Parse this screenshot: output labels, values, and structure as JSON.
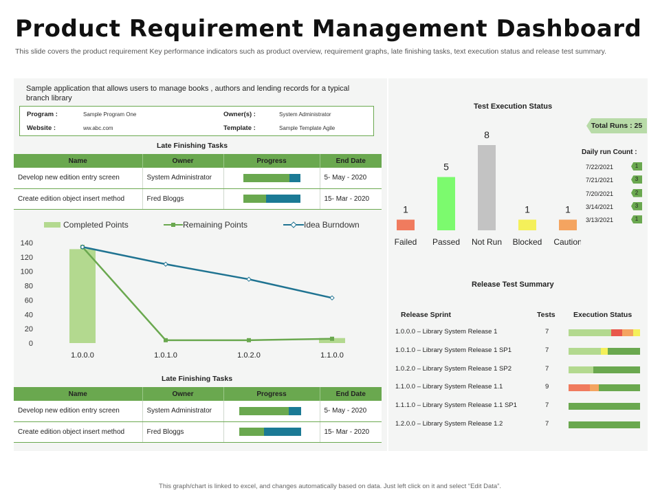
{
  "header": {
    "title": "Product Requirement Management Dashboard",
    "subtitle": "This slide covers the product requirement  Key performance indicators such as product overview, requirement  graphs, late finishing tasks, text execution status and release  test summary."
  },
  "overview": {
    "description": "Sample application that allows users to manage books , authors and lending records for a typical branch library",
    "program_label": "Program :",
    "program_value": "Sample Program One",
    "owner_label": "Owner(s) :",
    "owner_value": "System Administrator",
    "website_label": "Website :",
    "website_value": "ww.abc.com",
    "template_label": "Template :",
    "template_value": "Sample Template Agile"
  },
  "tasks_top": {
    "title": "Late Finishing Tasks",
    "headers": [
      "Name",
      "Owner",
      "Progress",
      "End Date"
    ],
    "rows": [
      {
        "name": "Develop new edition entry screen",
        "owner": "System Administrator",
        "progress": [
          0.8,
          0.2
        ],
        "end": "5- May - 2020"
      },
      {
        "name": "Create edition object insert method",
        "owner": "Fred Bloggs",
        "progress": [
          0.4,
          0.6
        ],
        "end": "15- Mar - 2020"
      }
    ]
  },
  "tasks_bottom": {
    "title": "Late Finishing Tasks",
    "headers": [
      "Name",
      "Owner",
      "Progress",
      "End Date"
    ],
    "rows": [
      {
        "name": "Develop new edition entry screen",
        "owner": "System Administrator",
        "progress": [
          0.8,
          0.2
        ],
        "end": "5- May - 2020"
      },
      {
        "name": "Create edition object insert method",
        "owner": "Fred Bloggs",
        "progress": [
          0.4,
          0.6
        ],
        "end": "15- Mar - 2020"
      }
    ]
  },
  "colors": {
    "green": "#6aa84f",
    "light_green": "#b3d98f",
    "teal": "#1b7a95",
    "blue_line": "#1f7391"
  },
  "chart_data": [
    {
      "type": "bar",
      "name_key": "burndown",
      "categories": [
        "1.0.0.0",
        "1.0.1.0",
        "1.0.2.0",
        "1.1.0.0"
      ],
      "series": [
        {
          "name": "Completed Points",
          "kind": "bar",
          "values": [
            131,
            0,
            0,
            7
          ]
        },
        {
          "name": "Remaining Points",
          "kind": "line",
          "values": [
            134,
            4,
            4,
            6
          ]
        },
        {
          "name": "Idea Burndown",
          "kind": "line",
          "values": [
            134,
            110,
            89,
            63
          ]
        }
      ],
      "yticks": [
        0,
        20,
        40,
        60,
        80,
        100,
        120,
        140
      ],
      "ylim": [
        0,
        140
      ],
      "legend": "top"
    },
    {
      "type": "bar",
      "name_key": "test_execution",
      "title": "Test Execution Status",
      "categories": [
        "Failed",
        "Passed",
        "Not Run",
        "Blocked",
        "Caution"
      ],
      "values": [
        1,
        5,
        8,
        1,
        1
      ],
      "colors": [
        "#f07b5e",
        "#7cfa6e",
        "#c3c3c3",
        "#f4f05a",
        "#f4a460"
      ]
    }
  ],
  "runs": {
    "total_label": "Total Runs : 25",
    "daily_title": "Daily run Count :",
    "daily": [
      {
        "date": "7/22/2021",
        "count": "1"
      },
      {
        "date": "7/21/2021",
        "count": "3"
      },
      {
        "date": "7/20/2021",
        "count": "2"
      },
      {
        "date": "3/14/2021",
        "count": "3"
      },
      {
        "date": "3/13/2021",
        "count": "1"
      }
    ]
  },
  "release": {
    "title": "Release Test Summary",
    "col_sprint": "Release Sprint",
    "col_tests": "Tests",
    "col_status": "Execution Status",
    "rows": [
      {
        "name": "1.0.0.0 – Library System Release 1",
        "tests": "7",
        "status": [
          [
            "#b3d98f",
            0.6
          ],
          [
            "#e8584b",
            0.15
          ],
          [
            "#f4a460",
            0.15
          ],
          [
            "#f4f05a",
            0.1
          ]
        ]
      },
      {
        "name": "1.0.1.0 – Library System Release 1 SP1",
        "tests": "7",
        "status": [
          [
            "#b3d98f",
            0.45
          ],
          [
            "#f4f05a",
            0.1
          ],
          [
            "#6aa84f",
            0.45
          ]
        ]
      },
      {
        "name": "1.0.2.0 – Library System Release 1 SP2",
        "tests": "7",
        "status": [
          [
            "#b3d98f",
            0.35
          ],
          [
            "#6aa84f",
            0.65
          ]
        ]
      },
      {
        "name": "1.1.0.0 – Library System Release 1.1",
        "tests": "9",
        "status": [
          [
            "#f07b5e",
            0.3
          ],
          [
            "#f4a460",
            0.12
          ],
          [
            "#6aa84f",
            0.58
          ]
        ]
      },
      {
        "name": "1.1.1.0 – Library System Release 1.1 SP1",
        "tests": "7",
        "status": [
          [
            "#6aa84f",
            1.0
          ]
        ]
      },
      {
        "name": "1.2.0.0 – Library System Release 1.2",
        "tests": "7",
        "status": [
          [
            "#6aa84f",
            1.0
          ]
        ]
      }
    ]
  },
  "footer": {
    "note": "This graph/chart is linked to excel, and changes automatically based on data. Just left click on it and select “Edit Data”."
  }
}
